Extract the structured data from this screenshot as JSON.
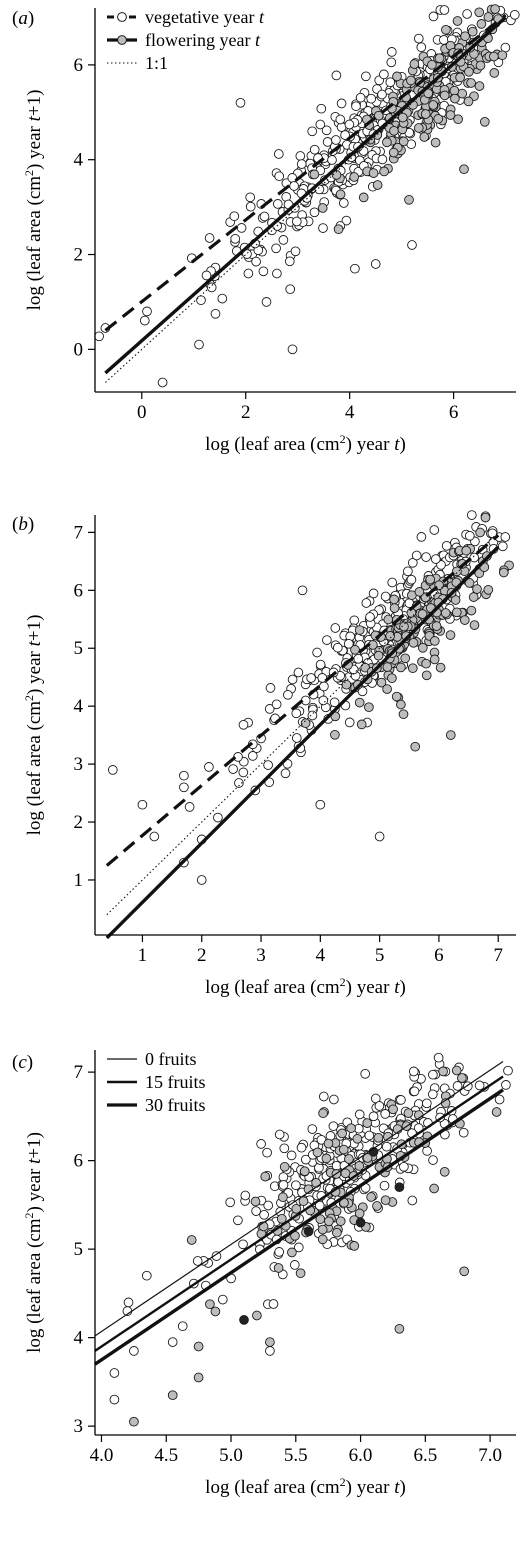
{
  "chart_data": [
    {
      "panel_label": "(a)",
      "type": "scatter",
      "xlabel": "log (leaf area (cm²) year t)",
      "ylabel": "log (leaf area (cm²) year t+1)",
      "xlim": [
        -0.9,
        7.2
      ],
      "ylim": [
        -0.9,
        7.2
      ],
      "xticks": [
        0,
        2,
        4,
        6
      ],
      "yticks": [
        0,
        2,
        4,
        6
      ],
      "legend": {
        "placement": "top-left",
        "entries": [
          "vegetative year t",
          "flowering year t",
          "1:1"
        ]
      },
      "series": [
        {
          "name": "vegetative year t",
          "marker": "open-circle",
          "line": "dashed",
          "fit": {
            "x": [
              -0.7,
              7.0
            ],
            "y": [
              0.4,
              7.05
            ]
          },
          "points": "cloud",
          "cloud": {
            "center": [
              4.4,
              4.6
            ],
            "spread_x": 1.5,
            "spread_y": 0.55,
            "n": 380
          }
        },
        {
          "name": "flowering year t",
          "marker": "filled-gray-circle",
          "line": "solid",
          "fit": {
            "x": [
              -0.7,
              7.0
            ],
            "y": [
              -0.5,
              7.0
            ]
          },
          "points": "cloud",
          "cloud": {
            "center": [
              5.6,
              5.4
            ],
            "spread_x": 0.8,
            "spread_y": 0.45,
            "n": 200
          }
        },
        {
          "name": "1:1",
          "line": "dotted",
          "fit": {
            "x": [
              -0.7,
              7.0
            ],
            "y": [
              -0.7,
              7.0
            ]
          }
        }
      ],
      "outliers": [
        {
          "x": -0.7,
          "y": 0.45,
          "fill": "open"
        },
        {
          "x": 0.4,
          "y": -0.7,
          "fill": "open"
        },
        {
          "x": 1.1,
          "y": 0.1,
          "fill": "open"
        },
        {
          "x": 2.9,
          "y": 0.0,
          "fill": "open"
        },
        {
          "x": 1.9,
          "y": 5.2,
          "fill": "open"
        },
        {
          "x": 5.2,
          "y": 2.2,
          "fill": "open"
        },
        {
          "x": 6.6,
          "y": 4.8,
          "fill": "gray"
        },
        {
          "x": 6.2,
          "y": 3.8,
          "fill": "gray"
        },
        {
          "x": 4.1,
          "y": 1.7,
          "fill": "open"
        },
        {
          "x": 4.5,
          "y": 1.8,
          "fill": "open"
        },
        {
          "x": 0.1,
          "y": 0.8,
          "fill": "open"
        },
        {
          "x": 2.6,
          "y": 1.6,
          "fill": "open"
        },
        {
          "x": 2.4,
          "y": 1.0,
          "fill": "open"
        }
      ]
    },
    {
      "panel_label": "(b)",
      "type": "scatter",
      "xlabel": "log (leaf area (cm²) year t)",
      "ylabel": "log (leaf area (cm²) year t+1)",
      "xlim": [
        0.2,
        7.3
      ],
      "ylim": [
        0.05,
        7.3
      ],
      "xticks": [
        1,
        2,
        3,
        4,
        5,
        6,
        7
      ],
      "yticks": [
        1,
        2,
        3,
        4,
        5,
        6,
        7
      ],
      "series": [
        {
          "name": "vegetative year t",
          "marker": "open-circle",
          "line": "dashed",
          "fit": {
            "x": [
              0.4,
              7.0
            ],
            "y": [
              1.25,
              6.95
            ]
          },
          "points": "cloud",
          "cloud": {
            "center": [
              5.0,
              5.2
            ],
            "spread_x": 1.1,
            "spread_y": 0.45,
            "n": 300
          }
        },
        {
          "name": "flowering year t",
          "marker": "filled-gray-circle",
          "line": "solid",
          "fit": {
            "x": [
              0.4,
              7.0
            ],
            "y": [
              0.0,
              6.75
            ]
          },
          "points": "cloud",
          "cloud": {
            "center": [
              5.7,
              5.4
            ],
            "spread_x": 0.65,
            "spread_y": 0.4,
            "n": 170
          }
        },
        {
          "name": "1:1",
          "line": "dotted",
          "fit": {
            "x": [
              0.4,
              7.0
            ],
            "y": [
              0.4,
              7.0
            ]
          }
        }
      ],
      "outliers": [
        {
          "x": 0.5,
          "y": 2.9,
          "fill": "open"
        },
        {
          "x": 1.0,
          "y": 2.3,
          "fill": "open"
        },
        {
          "x": 1.2,
          "y": 1.75,
          "fill": "open"
        },
        {
          "x": 1.7,
          "y": 2.8,
          "fill": "open"
        },
        {
          "x": 1.7,
          "y": 2.6,
          "fill": "open"
        },
        {
          "x": 1.7,
          "y": 1.3,
          "fill": "open"
        },
        {
          "x": 2.0,
          "y": 1.7,
          "fill": "open"
        },
        {
          "x": 2.0,
          "y": 1.0,
          "fill": "open"
        },
        {
          "x": 3.7,
          "y": 6.0,
          "fill": "open"
        },
        {
          "x": 5.0,
          "y": 1.75,
          "fill": "open"
        },
        {
          "x": 4.0,
          "y": 2.3,
          "fill": "open"
        },
        {
          "x": 5.6,
          "y": 3.3,
          "fill": "gray"
        },
        {
          "x": 6.2,
          "y": 3.5,
          "fill": "gray"
        },
        {
          "x": 6.6,
          "y": 5.4,
          "fill": "gray"
        }
      ]
    },
    {
      "panel_label": "(c)",
      "type": "scatter",
      "xlabel": "log (leaf area (cm²) year t)",
      "ylabel": "log (leaf area (cm²) year t+1)",
      "xlim": [
        3.95,
        7.2
      ],
      "ylim": [
        2.9,
        7.25
      ],
      "xticks": [
        4.0,
        4.5,
        5.0,
        5.5,
        6.0,
        6.5,
        7.0
      ],
      "yticks": [
        3,
        4,
        5,
        6,
        7
      ],
      "legend": {
        "placement": "top-left",
        "entries": [
          "0 fruits",
          "15 fruits",
          "30 fruits"
        ]
      },
      "series": [
        {
          "name": "0 fruits",
          "line": "solid-thin",
          "fit": {
            "x": [
              3.95,
              7.1
            ],
            "y": [
              4.02,
              7.12
            ]
          }
        },
        {
          "name": "15 fruits",
          "line": "solid-medium",
          "fit": {
            "x": [
              3.95,
              7.1
            ],
            "y": [
              3.85,
              6.95
            ]
          }
        },
        {
          "name": "30 fruits",
          "line": "solid-thick",
          "fit": {
            "x": [
              3.95,
              7.1
            ],
            "y": [
              3.7,
              6.8
            ]
          }
        }
      ],
      "clouds": [
        {
          "fill": "open",
          "center": [
            5.9,
            5.95
          ],
          "spread_x": 0.45,
          "spread_y": 0.35,
          "n": 330
        },
        {
          "fill": "gray",
          "center": [
            5.9,
            5.8
          ],
          "spread_x": 0.4,
          "spread_y": 0.35,
          "n": 110
        }
      ],
      "outliers": [
        {
          "x": 4.1,
          "y": 3.6,
          "fill": "open"
        },
        {
          "x": 4.1,
          "y": 3.3,
          "fill": "open"
        },
        {
          "x": 4.25,
          "y": 3.05,
          "fill": "gray"
        },
        {
          "x": 4.2,
          "y": 4.3,
          "fill": "open"
        },
        {
          "x": 4.25,
          "y": 3.85,
          "fill": "open"
        },
        {
          "x": 4.35,
          "y": 4.7,
          "fill": "open"
        },
        {
          "x": 4.55,
          "y": 3.35,
          "fill": "gray"
        },
        {
          "x": 4.55,
          "y": 3.95,
          "fill": "open"
        },
        {
          "x": 4.75,
          "y": 3.55,
          "fill": "gray"
        },
        {
          "x": 4.75,
          "y": 3.9,
          "fill": "gray"
        },
        {
          "x": 5.1,
          "y": 4.2,
          "fill": "dark"
        },
        {
          "x": 5.2,
          "y": 4.25,
          "fill": "gray"
        },
        {
          "x": 5.3,
          "y": 3.95,
          "fill": "gray"
        },
        {
          "x": 5.3,
          "y": 3.85,
          "fill": "open"
        },
        {
          "x": 6.3,
          "y": 4.1,
          "fill": "gray"
        },
        {
          "x": 6.8,
          "y": 4.75,
          "fill": "gray"
        },
        {
          "x": 7.05,
          "y": 6.55,
          "fill": "gray"
        },
        {
          "x": 5.6,
          "y": 5.2,
          "fill": "dark"
        },
        {
          "x": 6.1,
          "y": 6.1,
          "fill": "dark"
        },
        {
          "x": 6.3,
          "y": 5.7,
          "fill": "dark"
        },
        {
          "x": 6.0,
          "y": 5.3,
          "fill": "dark"
        }
      ]
    }
  ],
  "colors": {
    "open": "#ffffff",
    "gray": "#bdbdbd",
    "dark": "#222222",
    "stroke": "#1a1a1a"
  }
}
